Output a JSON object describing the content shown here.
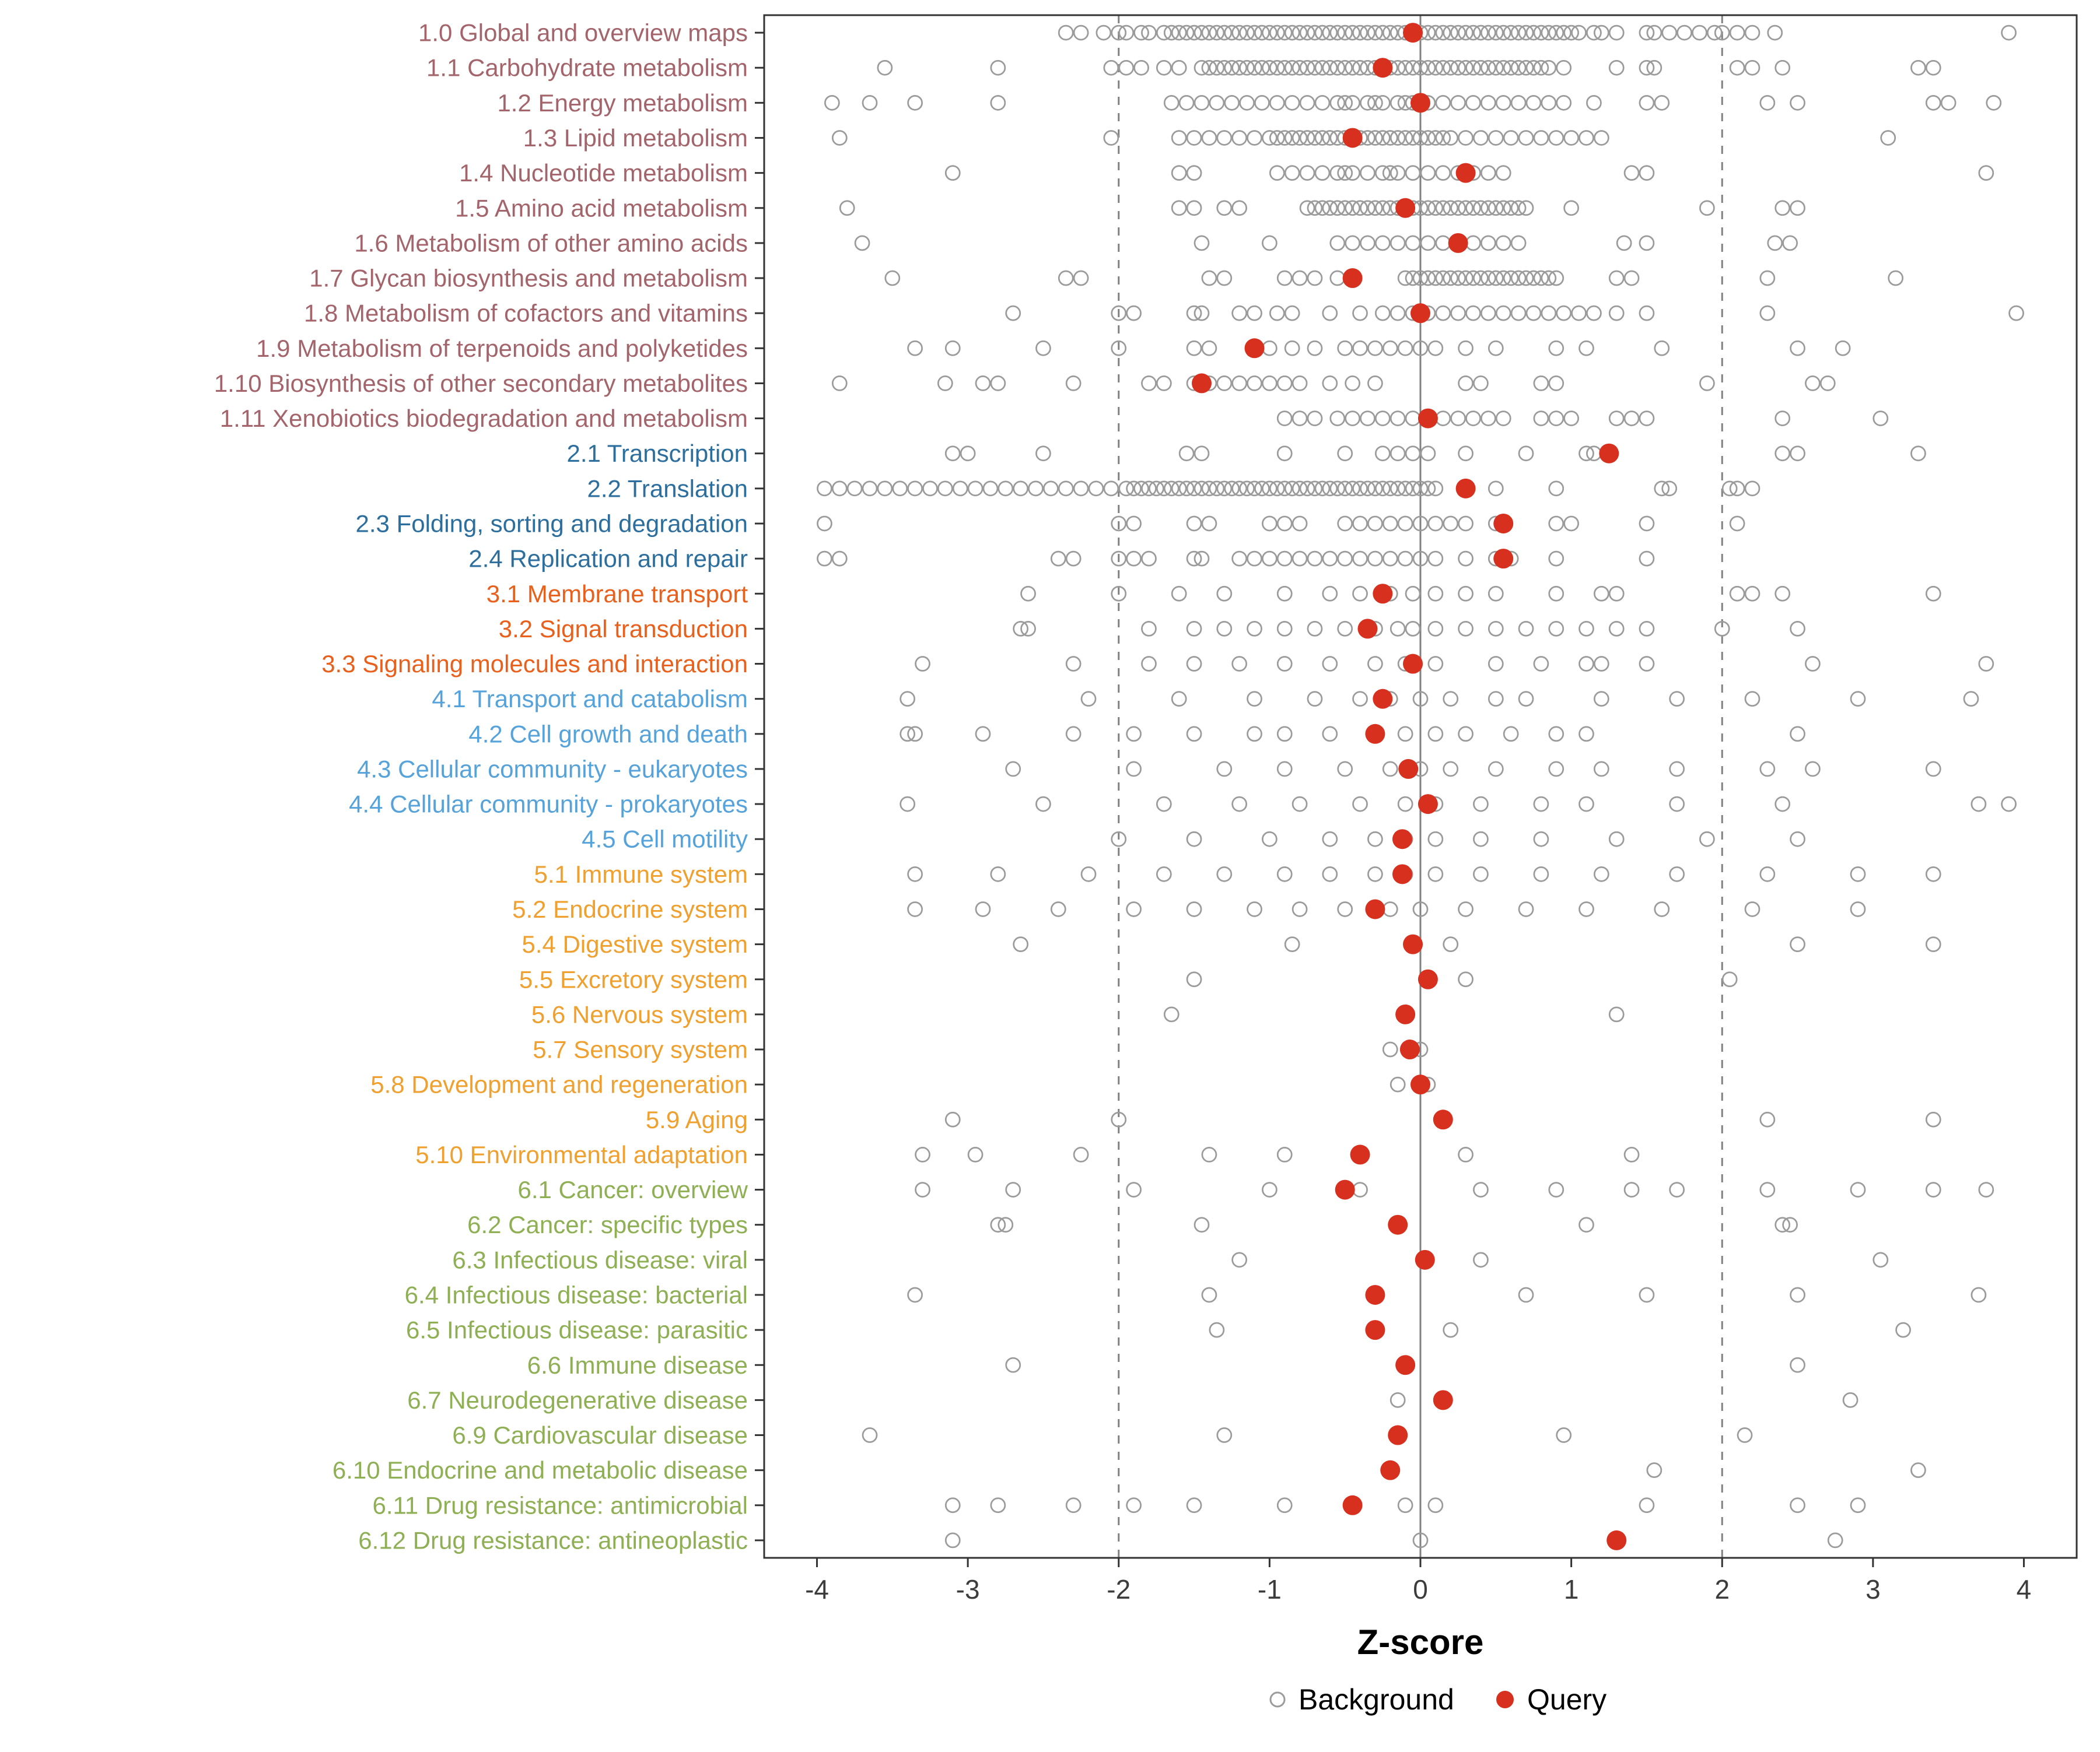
{
  "chart_data": {
    "type": "scatter",
    "variant": "horizontal-dot-strip",
    "title": "",
    "xlabel": "Z-score",
    "xlim": [
      -4.35,
      4.35
    ],
    "x_ticks": [
      -4,
      -3,
      -2,
      -1,
      0,
      1,
      2,
      3,
      4
    ],
    "reference_lines": {
      "solid": [
        0
      ],
      "dashed": [
        -2,
        2
      ]
    },
    "grid": false,
    "colors": {
      "query": "#D7301F",
      "background_stroke": "#9B9B9B",
      "axis_text": "#3C3C3C",
      "panel_border": "#333333",
      "ref_line": "#808080",
      "groups": {
        "g1": "#A3656B",
        "g2": "#2C6E9E",
        "g3": "#E8601C",
        "g4": "#56A3DB",
        "g5": "#EFA02F",
        "g6": "#8FAF54"
      }
    },
    "legend": {
      "position": "bottom",
      "items": [
        {
          "label": "Background",
          "style": "open"
        },
        {
          "label": "Query",
          "style": "filled"
        }
      ]
    },
    "rows": [
      {
        "label": "1.0 Global and overview maps",
        "group": "g1",
        "query": -0.05,
        "background": [
          -2.35,
          -2.25,
          -2.1,
          -2.0,
          -1.95,
          -1.85,
          -1.8,
          -1.7,
          -1.65,
          -1.6,
          -1.55,
          -1.5,
          -1.45,
          {
            "from": -1.4,
            "to": 1.05,
            "step": 0.05
          },
          1.15,
          1.2,
          1.3,
          1.5,
          1.55,
          1.65,
          1.75,
          1.85,
          1.95,
          2.0,
          2.1,
          2.2,
          2.35,
          3.9
        ]
      },
      {
        "label": "1.1 Carbohydrate metabolism",
        "group": "g1",
        "query": -0.25,
        "background": [
          -3.55,
          -2.8,
          -2.05,
          -1.95,
          -1.85,
          -1.7,
          -1.6,
          {
            "from": -1.45,
            "to": 0.85,
            "step": 0.05
          },
          0.95,
          1.3,
          1.5,
          1.55,
          2.1,
          2.2,
          2.4,
          3.3,
          3.4
        ]
      },
      {
        "label": "1.2 Energy metabolism",
        "group": "g1",
        "query": 0.0,
        "background": [
          -3.9,
          -3.65,
          -3.35,
          -2.8,
          {
            "from": -1.65,
            "to": 0.95,
            "step": 0.1
          },
          -0.5,
          -0.3,
          -0.1,
          0.0,
          1.15,
          1.5,
          1.6,
          2.3,
          2.5,
          3.4,
          3.5,
          3.8
        ]
      },
      {
        "label": "1.3 Lipid metabolism",
        "group": "g1",
        "query": -0.45,
        "background": [
          -3.85,
          -2.05,
          {
            "from": -1.6,
            "to": 1.2,
            "step": 0.1
          },
          {
            "from": -0.95,
            "to": 0.15,
            "step": 0.1
          },
          3.1
        ]
      },
      {
        "label": "1.4 Nucleotide metabolism",
        "group": "g1",
        "query": 0.3,
        "background": [
          -3.1,
          -1.6,
          -1.5,
          {
            "from": -0.95,
            "to": 0.55,
            "step": 0.1
          },
          -0.5,
          -0.2,
          1.4,
          1.5,
          3.75
        ]
      },
      {
        "label": "1.5 Amino acid metabolism",
        "group": "g1",
        "query": -0.1,
        "background": [
          -3.8,
          -1.6,
          -1.5,
          -1.3,
          -1.2,
          {
            "from": -0.75,
            "to": 0.7,
            "step": 0.05
          },
          1.0,
          1.9,
          2.4,
          2.5
        ]
      },
      {
        "label": "1.6 Metabolism of other amino acids",
        "group": "g1",
        "query": 0.25,
        "background": [
          -3.7,
          -1.45,
          -1.0,
          {
            "from": -0.55,
            "to": 0.7,
            "step": 0.1
          },
          1.35,
          1.5,
          2.35,
          2.45
        ]
      },
      {
        "label": "1.7 Glycan biosynthesis and metabolism",
        "group": "g1",
        "query": -0.45,
        "background": [
          -3.5,
          -2.35,
          -2.25,
          -1.4,
          -1.3,
          -0.9,
          -0.8,
          -0.7,
          -0.55,
          -0.45,
          {
            "from": -0.1,
            "to": 0.9,
            "step": 0.05
          },
          1.3,
          1.4,
          2.3,
          3.15
        ]
      },
      {
        "label": "1.8 Metabolism of cofactors and vitamins",
        "group": "g1",
        "query": 0.0,
        "background": [
          -2.7,
          -2.0,
          -1.9,
          -1.5,
          -1.45,
          -1.2,
          -1.1,
          -0.95,
          -0.85,
          -0.6,
          -0.4,
          {
            "from": -0.25,
            "to": 1.15,
            "step": 0.1
          },
          1.3,
          1.5,
          2.3,
          3.95
        ]
      },
      {
        "label": "1.9 Metabolism of terpenoids and polyketides",
        "group": "g1",
        "query": -1.1,
        "background": [
          -3.35,
          -3.1,
          -2.5,
          -2.0,
          -1.5,
          -1.4,
          -1.0,
          -0.85,
          -0.7,
          {
            "from": -0.5,
            "to": 0.1,
            "step": 0.1
          },
          0.3,
          0.5,
          0.9,
          1.1,
          1.6,
          2.5,
          2.8
        ]
      },
      {
        "label": "1.10 Biosynthesis of other secondary metabolites",
        "group": "g1",
        "query": -1.45,
        "background": [
          -3.85,
          -3.15,
          -2.9,
          -2.8,
          -2.3,
          -1.8,
          -1.7,
          {
            "from": -1.5,
            "to": -0.8,
            "step": 0.1
          },
          -0.6,
          -0.45,
          -0.3,
          0.3,
          0.4,
          0.8,
          0.9,
          1.9,
          2.6,
          2.7
        ]
      },
      {
        "label": "1.11 Xenobiotics biodegradation and metabolism",
        "group": "g1",
        "query": 0.05,
        "background": [
          -0.9,
          -0.8,
          -0.7,
          {
            "from": -0.55,
            "to": 0.55,
            "step": 0.1
          },
          0.8,
          0.9,
          1.0,
          1.3,
          1.4,
          1.5,
          2.4,
          3.05
        ]
      },
      {
        "label": "2.1 Transcription",
        "group": "g2",
        "query": 1.25,
        "background": [
          -3.1,
          -3.0,
          -2.5,
          -1.55,
          -1.45,
          -0.9,
          -0.5,
          -0.25,
          -0.15,
          -0.05,
          0.05,
          0.3,
          0.7,
          1.1,
          1.15,
          2.4,
          2.5,
          3.3
        ]
      },
      {
        "label": "2.2 Translation",
        "group": "g2",
        "query": 0.3,
        "background": [
          {
            "from": -3.95,
            "to": -2.0,
            "step": 0.1
          },
          {
            "from": -1.95,
            "to": 0.1,
            "step": 0.05
          },
          0.5,
          0.9,
          1.6,
          1.65,
          2.05,
          2.1,
          2.2
        ]
      },
      {
        "label": "2.3 Folding, sorting and degradation",
        "group": "g2",
        "query": 0.55,
        "background": [
          -3.95,
          -2.0,
          -1.9,
          -1.5,
          -1.4,
          -1.0,
          -0.9,
          -0.8,
          {
            "from": -0.5,
            "to": 0.3,
            "step": 0.1
          },
          0.5,
          0.9,
          1.0,
          1.5,
          2.1
        ]
      },
      {
        "label": "2.4 Replication and repair",
        "group": "g2",
        "query": 0.55,
        "background": [
          -3.95,
          -3.85,
          -2.4,
          -2.3,
          -2.0,
          -1.9,
          -1.8,
          -1.5,
          -1.45,
          {
            "from": -1.2,
            "to": 0.1,
            "step": 0.1
          },
          0.3,
          0.5,
          0.6,
          0.9,
          1.5
        ]
      },
      {
        "label": "3.1 Membrane transport",
        "group": "g3",
        "query": -0.25,
        "background": [
          -2.6,
          -2.0,
          -1.6,
          -1.3,
          -0.9,
          -0.6,
          -0.4,
          -0.2,
          -0.05,
          0.1,
          0.3,
          0.5,
          0.9,
          1.2,
          1.3,
          2.1,
          2.2,
          2.4,
          3.4
        ]
      },
      {
        "label": "3.2 Signal transduction",
        "group": "g3",
        "query": -0.35,
        "background": [
          -2.65,
          -2.6,
          -1.8,
          -1.5,
          -1.3,
          -1.1,
          -0.9,
          -0.7,
          -0.5,
          -0.3,
          -0.15,
          -0.05,
          0.1,
          0.3,
          0.5,
          0.7,
          0.9,
          1.1,
          1.3,
          1.5,
          2.0,
          2.5
        ]
      },
      {
        "label": "3.3 Signaling molecules and interaction",
        "group": "g3",
        "query": -0.05,
        "background": [
          -3.3,
          -2.3,
          -1.8,
          -1.5,
          -1.2,
          -0.9,
          -0.6,
          -0.3,
          -0.1,
          0.1,
          0.5,
          0.8,
          1.1,
          1.2,
          1.5,
          2.6,
          3.75
        ]
      },
      {
        "label": "4.1 Transport and catabolism",
        "group": "g4",
        "query": -0.25,
        "background": [
          -3.4,
          -2.2,
          -1.6,
          -1.1,
          -0.7,
          -0.4,
          -0.2,
          0.0,
          0.2,
          0.5,
          0.7,
          1.2,
          1.7,
          2.2,
          2.9,
          3.65
        ]
      },
      {
        "label": "4.2 Cell growth and death",
        "group": "g4",
        "query": -0.3,
        "background": [
          -3.4,
          -3.35,
          -2.9,
          -2.3,
          -1.9,
          -1.5,
          -1.1,
          -0.9,
          -0.6,
          -0.3,
          -0.1,
          0.1,
          0.3,
          0.6,
          0.9,
          1.1,
          2.5
        ]
      },
      {
        "label": "4.3 Cellular community - eukaryotes",
        "group": "g4",
        "query": -0.08,
        "background": [
          -2.7,
          -1.9,
          -1.3,
          -0.9,
          -0.5,
          -0.2,
          0.0,
          0.2,
          0.5,
          0.9,
          1.2,
          1.7,
          2.3,
          2.6,
          3.4
        ]
      },
      {
        "label": "4.4 Cellular community - prokaryotes",
        "group": "g4",
        "query": 0.05,
        "background": [
          -3.4,
          -2.5,
          -1.7,
          -1.2,
          -0.8,
          -0.4,
          -0.1,
          0.1,
          0.4,
          0.8,
          1.1,
          1.7,
          2.4,
          3.7,
          3.9
        ]
      },
      {
        "label": "4.5 Cell motility",
        "group": "g4",
        "query": -0.12,
        "background": [
          -2.0,
          -1.5,
          -1.0,
          -0.6,
          -0.3,
          -0.1,
          0.1,
          0.4,
          0.8,
          1.3,
          1.9,
          2.5
        ]
      },
      {
        "label": "5.1 Immune system",
        "group": "g5",
        "query": -0.12,
        "background": [
          -3.35,
          -2.8,
          -2.2,
          -1.7,
          -1.3,
          -0.9,
          -0.6,
          -0.3,
          -0.1,
          0.1,
          0.4,
          0.8,
          1.2,
          1.7,
          2.3,
          2.9,
          3.4
        ]
      },
      {
        "label": "5.2 Endocrine system",
        "group": "g5",
        "query": -0.3,
        "background": [
          -3.35,
          -2.9,
          -2.4,
          -1.9,
          -1.5,
          -1.1,
          -0.8,
          -0.5,
          -0.2,
          0.0,
          0.3,
          0.7,
          1.1,
          1.6,
          2.2,
          2.9
        ]
      },
      {
        "label": "5.4 Digestive system",
        "group": "g5",
        "query": -0.05,
        "background": [
          -2.65,
          -0.85,
          0.2,
          2.5,
          3.4
        ]
      },
      {
        "label": "5.5 Excretory system",
        "group": "g5",
        "query": 0.05,
        "background": [
          -1.5,
          0.3,
          2.05
        ]
      },
      {
        "label": "5.6 Nervous system",
        "group": "g5",
        "query": -0.1,
        "background": [
          -1.65,
          -0.1,
          1.3
        ]
      },
      {
        "label": "5.7 Sensory system",
        "group": "g5",
        "query": -0.07,
        "background": [
          -0.2,
          0.0
        ]
      },
      {
        "label": "5.8 Development and regeneration",
        "group": "g5",
        "query": 0.0,
        "background": [
          -0.15,
          0.05
        ]
      },
      {
        "label": "5.9 Aging",
        "group": "g5",
        "query": 0.15,
        "background": [
          -3.1,
          -2.0,
          2.3,
          3.4
        ]
      },
      {
        "label": "5.10 Environmental adaptation",
        "group": "g5",
        "query": -0.4,
        "background": [
          -3.3,
          -2.95,
          -2.25,
          -1.4,
          -0.9,
          0.3,
          1.4
        ]
      },
      {
        "label": "6.1 Cancer: overview",
        "group": "g6",
        "query": -0.5,
        "background": [
          -3.3,
          -2.7,
          -1.9,
          -1.0,
          -0.4,
          0.4,
          0.9,
          1.4,
          1.7,
          2.3,
          2.9,
          3.4,
          3.75
        ]
      },
      {
        "label": "6.2 Cancer: specific types",
        "group": "g6",
        "query": -0.15,
        "background": [
          -2.8,
          -2.75,
          -1.45,
          1.1,
          2.4,
          2.45
        ]
      },
      {
        "label": "6.3 Infectious disease: viral",
        "group": "g6",
        "query": 0.03,
        "background": [
          -1.2,
          0.4,
          3.05
        ]
      },
      {
        "label": "6.4 Infectious disease: bacterial",
        "group": "g6",
        "query": -0.3,
        "background": [
          -3.35,
          -1.4,
          0.7,
          1.5,
          2.5,
          3.7
        ]
      },
      {
        "label": "6.5 Infectious disease: parasitic",
        "group": "g6",
        "query": -0.3,
        "background": [
          -1.35,
          0.2,
          3.2
        ]
      },
      {
        "label": "6.6 Immune disease",
        "group": "g6",
        "query": -0.1,
        "background": [
          -2.7,
          -0.1,
          2.5
        ]
      },
      {
        "label": "6.7 Neurodegenerative disease",
        "group": "g6",
        "query": 0.15,
        "background": [
          -0.15,
          2.85
        ]
      },
      {
        "label": "6.9 Cardiovascular disease",
        "group": "g6",
        "query": -0.15,
        "background": [
          -3.65,
          -1.3,
          0.95,
          2.15
        ]
      },
      {
        "label": "6.10 Endocrine and metabolic disease",
        "group": "g6",
        "query": -0.2,
        "background": [
          1.55,
          3.3
        ]
      },
      {
        "label": "6.11 Drug resistance: antimicrobial",
        "group": "g6",
        "query": -0.45,
        "background": [
          -3.1,
          -2.8,
          -2.3,
          -1.9,
          -1.5,
          -0.9,
          -0.1,
          0.1,
          1.5,
          2.5,
          2.9
        ]
      },
      {
        "label": "6.12 Drug resistance: antineoplastic",
        "group": "g6",
        "query": 1.3,
        "background": [
          -3.1,
          0.0,
          2.75
        ]
      }
    ]
  }
}
